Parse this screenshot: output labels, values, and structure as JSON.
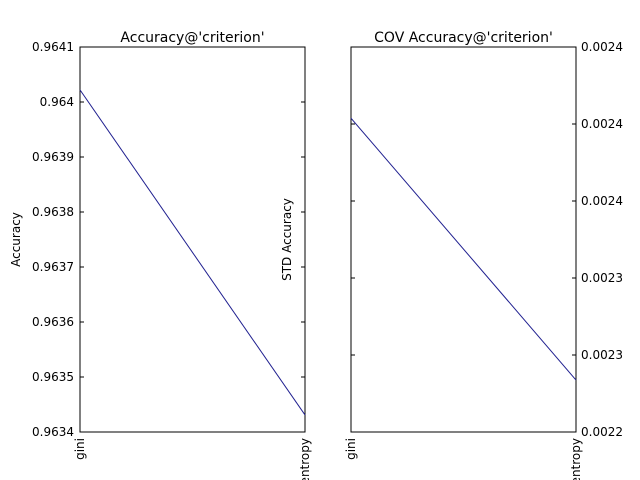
{
  "chart_data": [
    {
      "type": "line",
      "title": "Accuracy@'criterion'",
      "y_label": "Accuracy",
      "categories": [
        "gini",
        "entropy"
      ],
      "series": [
        {
          "name": "Accuracy",
          "color": "#1f1f8f",
          "values": [
            0.964022,
            0.963431
          ]
        }
      ],
      "ylim": [
        0.9634,
        0.9641
      ],
      "yticks": [
        0.9634,
        0.9635,
        0.9636,
        0.9637,
        0.9638,
        0.9639,
        0.964,
        0.9641
      ],
      "ytick_side": "left"
    },
    {
      "type": "line",
      "title": "COV Accuracy@'criterion'",
      "y_label": "STD Accuracy",
      "categories": [
        "gini",
        "entropy"
      ],
      "series": [
        {
          "name": "STD Accuracy",
          "color": "#1f1f8f",
          "values": [
            0.002403,
            0.002267
          ]
        }
      ],
      "ylim": [
        0.00224,
        0.00244
      ],
      "yticks": [
        {
          "value": 0.00224,
          "label": "0.0022"
        },
        {
          "value": 0.00228,
          "label": "0.0023"
        },
        {
          "value": 0.00232,
          "label": "0.0023"
        },
        {
          "value": 0.00236,
          "label": "0.0024"
        },
        {
          "value": 0.0024,
          "label": "0.0024"
        },
        {
          "value": 0.00244,
          "label": "0.0024"
        }
      ],
      "ytick_side": "right"
    }
  ]
}
